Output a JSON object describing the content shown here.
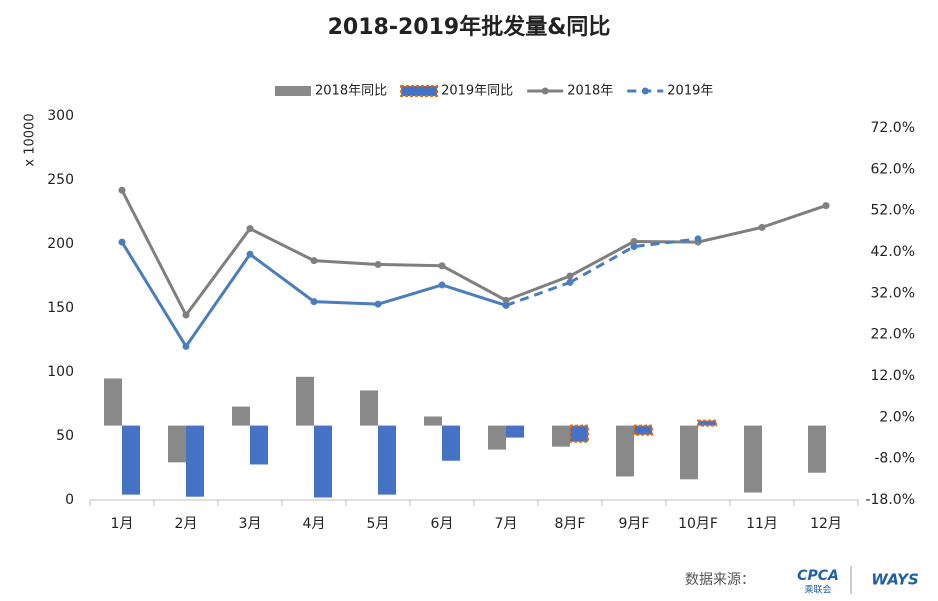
{
  "chart_data": {
    "type": "bar-line",
    "title": "2018-2019年批发量&同比",
    "y_axis_label": "x 10000",
    "categories": [
      "1月",
      "2月",
      "3月",
      "4月",
      "5月",
      "6月",
      "7月",
      "8月F",
      "9月F",
      "10月F",
      "11月",
      "12月"
    ],
    "series": [
      {
        "name": "2018年同比",
        "kind": "bar",
        "axis": "y2",
        "color": "#898989",
        "values": [
          11.4,
          -8.9,
          4.6,
          11.8,
          8.5,
          2.2,
          -5.8,
          -5.1,
          -12.3,
          -13.0,
          -16.2,
          -11.4
        ]
      },
      {
        "name": "2019年同比",
        "kind": "bar",
        "axis": "y2",
        "color": "#4472c4",
        "forecast_border": "#e46c0a",
        "dashed_from_index": 7,
        "values": [
          -16.7,
          -17.2,
          -9.4,
          -17.4,
          -16.7,
          -8.5,
          -2.9,
          -3.9,
          -2.2,
          1.2,
          null,
          null
        ]
      },
      {
        "name": "2018年",
        "kind": "line",
        "color": "#7f7f7f",
        "values": [
          242,
          144.5,
          212,
          187,
          184,
          183,
          156,
          175,
          202,
          201.5,
          213,
          230
        ]
      },
      {
        "name": "2019年",
        "kind": "line",
        "color": "#4a7ebb",
        "dashed_from_index": 7,
        "values": [
          201.5,
          120,
          192,
          155,
          153,
          168,
          152,
          170,
          198,
          204,
          null,
          null
        ]
      }
    ],
    "ylim": [
      0,
      300
    ],
    "yticks": [
      0,
      50,
      100,
      150,
      200,
      250,
      300
    ],
    "y2lim": [
      -18,
      72
    ],
    "y2ticks": [
      {
        "value": -18,
        "label": "-18.0%"
      },
      {
        "value": -8,
        "label": "-8.0%"
      },
      {
        "value": 2,
        "label": "2.0%"
      },
      {
        "value": 12,
        "label": "12.0%"
      },
      {
        "value": 22,
        "label": "22.0%"
      },
      {
        "value": 32,
        "label": "32.0%"
      },
      {
        "value": 42,
        "label": "42.0%"
      },
      {
        "value": 52,
        "label": "52.0%"
      },
      {
        "value": 62,
        "label": "62.0%"
      },
      {
        "value": 72,
        "label": "72.0%"
      }
    ],
    "legend": "top",
    "source": "数据来源：",
    "logos": [
      "CPCA",
      "乘联会",
      "WAYS"
    ]
  }
}
